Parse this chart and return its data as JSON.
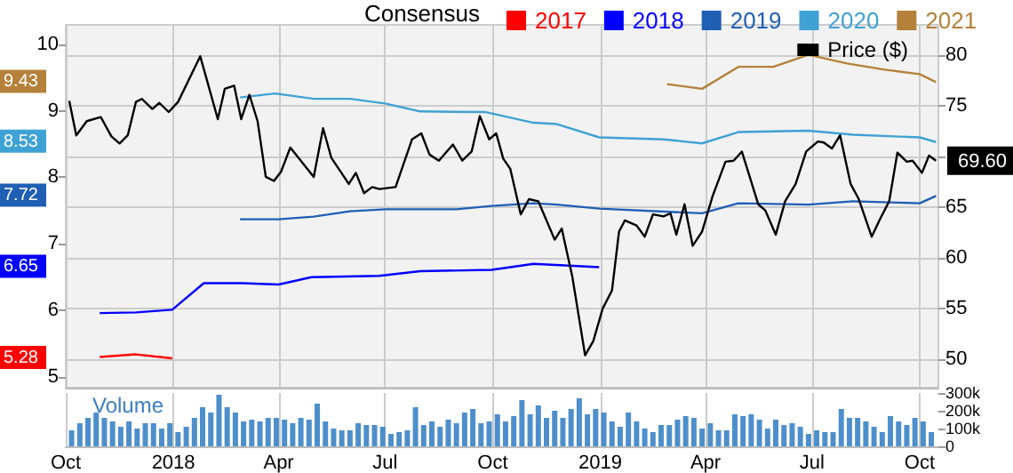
{
  "chart_data": {
    "type": "line",
    "legend_title": "Consensus",
    "y3label": "Volume",
    "legend": "top right",
    "grid": true,
    "annotations": [
      "9.43",
      "8.53",
      "7.72",
      "6.65",
      "5.28"
    ],
    "xlim": [
      "2017-10-01",
      "2019-10-17"
    ],
    "xticks": [
      {
        "value": "2017-10-01",
        "label": "Oct"
      },
      {
        "value": "2018-01-01",
        "label": "2018"
      },
      {
        "value": "2018-04-01",
        "label": "Apr"
      },
      {
        "value": "2018-07-01",
        "label": "Jul"
      },
      {
        "value": "2018-10-01",
        "label": "Oct"
      },
      {
        "value": "2019-01-01",
        "label": "2019"
      },
      {
        "value": "2019-04-01",
        "label": "Apr"
      },
      {
        "value": "2019-07-01",
        "label": "Jul"
      },
      {
        "value": "2019-10-01",
        "label": "Oct"
      }
    ],
    "ylim": [
      4.84,
      10.29
    ],
    "yticks": [
      5,
      6,
      7,
      8,
      9,
      10
    ],
    "y2lim": [
      47.2,
      83
    ],
    "y2ticks": [
      50,
      55,
      60,
      65,
      {
        "value": 70,
        "label": null
      },
      75,
      80
    ],
    "y3lim": [
      0,
      300000
    ],
    "y3ticks": [
      0,
      {
        "value": 100000,
        "label": "100k"
      },
      {
        "value": 200000,
        "label": "200k"
      },
      {
        "value": 300000,
        "label": "300k"
      }
    ],
    "series": [
      {
        "name": "2017",
        "color": "#ff0000",
        "axis": "y",
        "x": [
          "2017-10-30",
          "2017-11-30",
          "2017-12-31"
        ],
        "values": [
          5.3,
          5.34,
          5.28
        ]
      },
      {
        "name": "2018",
        "color": "#0000ff",
        "axis": "y",
        "x": [
          "2017-10-30",
          "2017-11-30",
          "2017-12-31",
          "2018-01-27",
          "2018-03-01",
          "2018-04-01",
          "2018-04-29",
          "2018-06-26",
          "2018-07-31",
          "2018-09-30",
          "2018-11-05",
          "2018-12-31"
        ],
        "values": [
          5.96,
          5.97,
          6.01,
          6.41,
          6.41,
          6.39,
          6.5,
          6.52,
          6.59,
          6.61,
          6.7,
          6.65
        ]
      },
      {
        "name": "2019",
        "color": "#1f5fb4",
        "axis": "y",
        "x": [
          "2018-02-27",
          "2018-04-01",
          "2018-05-01",
          "2018-06-01",
          "2018-07-01",
          "2018-08-31",
          "2018-09-30",
          "2018-11-05",
          "2018-11-25",
          "2018-12-31",
          "2019-03-29",
          "2019-04-29",
          "2019-06-28",
          "2019-08-05",
          "2019-10-01",
          "2019-10-15"
        ],
        "values": [
          7.37,
          7.37,
          7.41,
          7.49,
          7.52,
          7.52,
          7.57,
          7.61,
          7.59,
          7.53,
          7.46,
          7.61,
          7.59,
          7.64,
          7.61,
          7.72
        ]
      },
      {
        "name": "2020",
        "color": "#3fa2d4",
        "axis": "y",
        "x": [
          "2018-02-27",
          "2018-03-29",
          "2018-05-01",
          "2018-06-01",
          "2018-07-01",
          "2018-07-31",
          "2018-09-25",
          "2018-11-05",
          "2018-11-25",
          "2018-12-31",
          "2019-02-24",
          "2019-03-29",
          "2019-04-29",
          "2019-06-28",
          "2019-08-05",
          "2019-10-01",
          "2019-10-15"
        ],
        "values": [
          9.2,
          9.26,
          9.18,
          9.18,
          9.11,
          8.99,
          8.98,
          8.82,
          8.8,
          8.6,
          8.57,
          8.51,
          8.68,
          8.7,
          8.64,
          8.6,
          8.53
        ]
      },
      {
        "name": "2021",
        "color": "#b5813a",
        "axis": "y",
        "x": [
          "2019-02-27",
          "2019-03-29",
          "2019-04-29",
          "2019-05-29",
          "2019-06-28",
          "2019-07-31",
          "2019-08-31",
          "2019-10-01",
          "2019-10-15"
        ],
        "values": [
          9.4,
          9.33,
          9.66,
          9.66,
          9.84,
          9.71,
          9.62,
          9.55,
          9.43
        ]
      },
      {
        "name": "Price ($)",
        "color": "#000000",
        "axis": "y2",
        "x": [
          "2017-10-04",
          "2017-10-10",
          "2017-10-19",
          "2017-10-31",
          "2017-11-09",
          "2017-11-16",
          "2017-11-23",
          "2017-11-30",
          "2017-12-05",
          "2017-12-14",
          "2017-12-20",
          "2017-12-28",
          "2018-01-05",
          "2018-01-24",
          "2018-02-08",
          "2018-02-14",
          "2018-02-22",
          "2018-02-28",
          "2018-03-07",
          "2018-03-14",
          "2018-03-21",
          "2018-03-28",
          "2018-04-03",
          "2018-04-11",
          "2018-05-01",
          "2018-05-09",
          "2018-05-16",
          "2018-05-31",
          "2018-06-06",
          "2018-06-13",
          "2018-06-20",
          "2018-06-26",
          "2018-07-10",
          "2018-07-24",
          "2018-08-01",
          "2018-08-08",
          "2018-08-16",
          "2018-08-28",
          "2018-09-05",
          "2018-09-13",
          "2018-09-20",
          "2018-09-28",
          "2018-10-04",
          "2018-10-10",
          "2018-10-16",
          "2018-10-25",
          "2018-11-01",
          "2018-11-09",
          "2018-11-23",
          "2018-11-29",
          "2018-12-08",
          "2018-12-19",
          "2018-12-26",
          "2019-01-03",
          "2019-01-11",
          "2019-01-17",
          "2019-01-22",
          "2019-02-01",
          "2019-02-08",
          "2019-02-15",
          "2019-02-24",
          "2019-03-02",
          "2019-03-07",
          "2019-03-14",
          "2019-03-21",
          "2019-03-29",
          "2019-04-07",
          "2019-04-18",
          "2019-04-25",
          "2019-05-02",
          "2019-05-16",
          "2019-05-22",
          "2019-05-31",
          "2019-06-08",
          "2019-06-17",
          "2019-06-26",
          "2019-07-06",
          "2019-07-11",
          "2019-07-18",
          "2019-07-25",
          "2019-08-03",
          "2019-08-10",
          "2019-08-21",
          "2019-08-28",
          "2019-09-05",
          "2019-09-12",
          "2019-09-20",
          "2019-09-25",
          "2019-10-03",
          "2019-10-09",
          "2019-10-15"
        ],
        "values": [
          75.5,
          72.1,
          73.5,
          73.9,
          72.0,
          71.3,
          72.1,
          75.4,
          75.7,
          74.7,
          75.3,
          74.4,
          75.4,
          79.9,
          73.7,
          76.7,
          77.0,
          73.7,
          76.1,
          73.5,
          68.0,
          67.6,
          68.5,
          70.9,
          68.0,
          72.8,
          69.9,
          67.3,
          68.4,
          66.4,
          67.0,
          66.8,
          67.0,
          71.7,
          72.3,
          70.2,
          69.6,
          71.2,
          69.6,
          70.5,
          74.0,
          71.7,
          72.3,
          69.8,
          68.8,
          64.3,
          65.8,
          65.6,
          61.8,
          62.9,
          58.2,
          50.4,
          51.8,
          55.0,
          56.8,
          62.6,
          63.7,
          63.2,
          62.1,
          64.3,
          64.1,
          64.4,
          62.3,
          65.3,
          61.2,
          62.6,
          66.1,
          69.5,
          69.6,
          70.5,
          65.3,
          64.7,
          62.3,
          65.6,
          67.3,
          70.5,
          71.5,
          71.4,
          70.8,
          72.1,
          67.3,
          65.8,
          62.1,
          63.8,
          65.6,
          70.4,
          69.5,
          69.6,
          68.4,
          70.1,
          69.6
        ],
        "value_labels": [
          null,
          null,
          null,
          null,
          null,
          null,
          null,
          null,
          null,
          null,
          null,
          null,
          null,
          null,
          null,
          null,
          null,
          null,
          null,
          null,
          null,
          null,
          null,
          null,
          null,
          null,
          null,
          null,
          null,
          null,
          null,
          null,
          null,
          null,
          null,
          null,
          null,
          null,
          null,
          null,
          null,
          null,
          null,
          null,
          null,
          null,
          null,
          null,
          null,
          null,
          null,
          null,
          null,
          null,
          null,
          null,
          null,
          null,
          null,
          null,
          null,
          null,
          null,
          null,
          null,
          null,
          null,
          null,
          null,
          null,
          null,
          null,
          null,
          null,
          null,
          null,
          null,
          null,
          null,
          null,
          null,
          null,
          null,
          null,
          null,
          null,
          null,
          null,
          null,
          null,
          "69.60"
        ]
      },
      {
        "type": "bar",
        "color": "#4d8fcc",
        "axis": "y3",
        "x": [
          "2017-10-06",
          "2017-10-13",
          "2017-10-20",
          "2017-10-27",
          "2017-11-03",
          "2017-11-10",
          "2017-11-17",
          "2017-11-24",
          "2017-12-01",
          "2017-12-08",
          "2017-12-15",
          "2017-12-22",
          "2017-12-29",
          "2018-01-05",
          "2018-01-12",
          "2018-01-19",
          "2018-01-26",
          "2018-02-02",
          "2018-02-09",
          "2018-02-16",
          "2018-02-23",
          "2018-03-02",
          "2018-03-09",
          "2018-03-16",
          "2018-03-23",
          "2018-03-30",
          "2018-04-06",
          "2018-04-13",
          "2018-04-20",
          "2018-04-27",
          "2018-05-04",
          "2018-05-11",
          "2018-05-18",
          "2018-05-25",
          "2018-06-01",
          "2018-06-08",
          "2018-06-15",
          "2018-06-22",
          "2018-06-29",
          "2018-07-06",
          "2018-07-13",
          "2018-07-20",
          "2018-07-27",
          "2018-08-03",
          "2018-08-10",
          "2018-08-17",
          "2018-08-24",
          "2018-08-31",
          "2018-09-07",
          "2018-09-14",
          "2018-09-21",
          "2018-09-28",
          "2018-10-05",
          "2018-10-12",
          "2018-10-19",
          "2018-10-26",
          "2018-11-02",
          "2018-11-09",
          "2018-11-16",
          "2018-11-23",
          "2018-11-30",
          "2018-12-07",
          "2018-12-14",
          "2018-12-21",
          "2018-12-28",
          "2019-01-04",
          "2019-01-11",
          "2019-01-18",
          "2019-01-25",
          "2019-02-01",
          "2019-02-08",
          "2019-02-15",
          "2019-02-22",
          "2019-03-01",
          "2019-03-08",
          "2019-03-15",
          "2019-03-22",
          "2019-03-29",
          "2019-04-05",
          "2019-04-12",
          "2019-04-19",
          "2019-04-26",
          "2019-05-03",
          "2019-05-10",
          "2019-05-17",
          "2019-05-24",
          "2019-05-31",
          "2019-06-07",
          "2019-06-14",
          "2019-06-21",
          "2019-06-28",
          "2019-07-05",
          "2019-07-12",
          "2019-07-19",
          "2019-07-26",
          "2019-08-02",
          "2019-08-09",
          "2019-08-16",
          "2019-08-23",
          "2019-08-30",
          "2019-09-06",
          "2019-09-13",
          "2019-09-20",
          "2019-09-27",
          "2019-10-04",
          "2019-10-11"
        ],
        "values": [
          90000,
          130000,
          160000,
          190000,
          160000,
          140000,
          110000,
          140000,
          100000,
          130000,
          130000,
          100000,
          130000,
          80000,
          110000,
          160000,
          220000,
          190000,
          290000,
          220000,
          190000,
          140000,
          150000,
          140000,
          160000,
          160000,
          150000,
          130000,
          160000,
          150000,
          240000,
          140000,
          100000,
          90000,
          90000,
          130000,
          120000,
          120000,
          110000,
          70000,
          80000,
          90000,
          220000,
          120000,
          140000,
          110000,
          150000,
          130000,
          190000,
          210000,
          130000,
          140000,
          180000,
          140000,
          170000,
          260000,
          180000,
          230000,
          160000,
          200000,
          160000,
          210000,
          270000,
          180000,
          210000,
          190000,
          140000,
          110000,
          190000,
          140000,
          100000,
          80000,
          120000,
          120000,
          150000,
          170000,
          160000,
          100000,
          130000,
          90000,
          90000,
          180000,
          170000,
          180000,
          150000,
          100000,
          150000,
          120000,
          130000,
          110000,
          70000,
          90000,
          80000,
          80000,
          210000,
          160000,
          160000,
          140000,
          110000,
          80000,
          170000,
          140000,
          120000,
          160000,
          140000,
          80000
        ]
      }
    ]
  }
}
